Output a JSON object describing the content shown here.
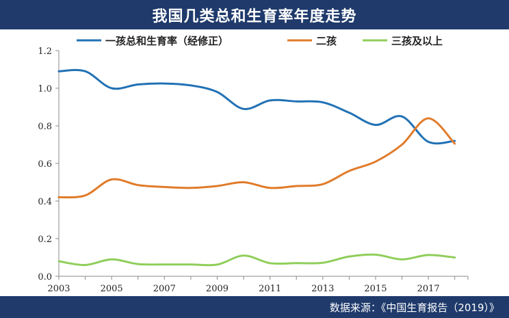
{
  "header": {
    "title": "我国几类总和生育率年度走势"
  },
  "footer": {
    "source": "数据来源：《中国生育报告（2019）》"
  },
  "chart_data": {
    "type": "line",
    "title": "我国几类总和生育率年度走势",
    "x": [
      2003,
      2004,
      2005,
      2006,
      2007,
      2008,
      2009,
      2010,
      2011,
      2012,
      2013,
      2014,
      2015,
      2016,
      2017,
      2018
    ],
    "x_ticks": [
      "2003",
      "2005",
      "2007",
      "2009",
      "2011",
      "2013",
      "2015",
      "2017"
    ],
    "y_ticks": [
      "0.0",
      "0.2",
      "0.4",
      "0.6",
      "0.8",
      "1.0",
      "1.2"
    ],
    "ylim": [
      0,
      1.2
    ],
    "xlim": [
      2003,
      2018.5
    ],
    "grid": false,
    "legend_position": "top",
    "series": [
      {
        "name": "一孩总和生育率（经修正）",
        "color": "#2171b5",
        "values": [
          1.09,
          1.09,
          1.0,
          1.02,
          1.025,
          1.015,
          0.98,
          0.89,
          0.935,
          0.93,
          0.925,
          0.87,
          0.805,
          0.85,
          0.715,
          0.72
        ]
      },
      {
        "name": "二孩",
        "color": "#e07b2a",
        "values": [
          0.42,
          0.43,
          0.515,
          0.485,
          0.475,
          0.47,
          0.48,
          0.5,
          0.47,
          0.48,
          0.49,
          0.56,
          0.61,
          0.7,
          0.84,
          0.705
        ]
      },
      {
        "name": "三孩及以上",
        "color": "#8fce5a",
        "values": [
          0.08,
          0.06,
          0.09,
          0.065,
          0.063,
          0.063,
          0.062,
          0.11,
          0.07,
          0.07,
          0.072,
          0.105,
          0.115,
          0.09,
          0.113,
          0.1
        ]
      }
    ]
  }
}
